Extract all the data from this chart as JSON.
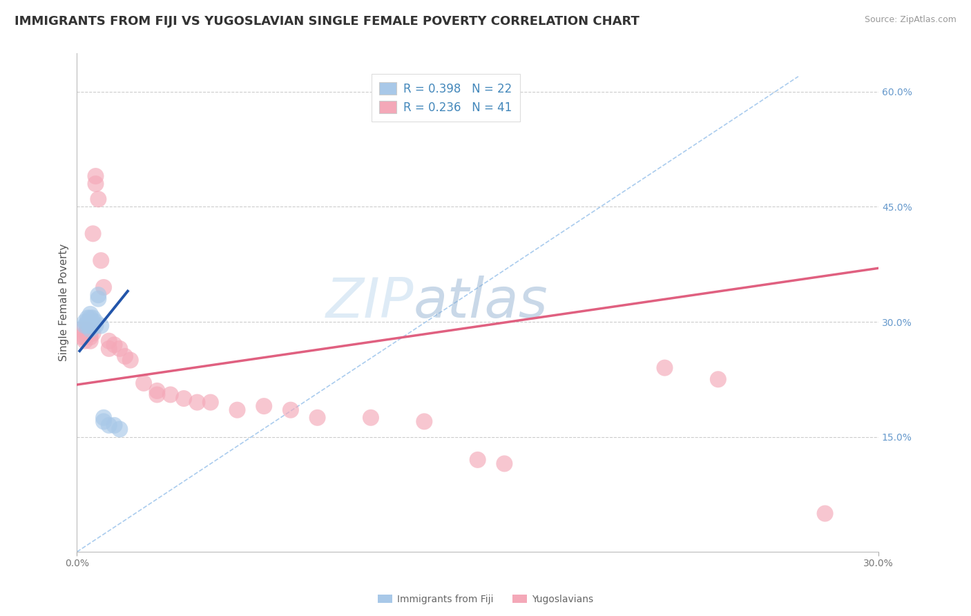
{
  "title": "IMMIGRANTS FROM FIJI VS YUGOSLAVIAN SINGLE FEMALE POVERTY CORRELATION CHART",
  "source": "Source: ZipAtlas.com",
  "ylabel": "Single Female Poverty",
  "xlim": [
    0.0,
    0.3
  ],
  "ylim": [
    0.0,
    0.65
  ],
  "watermark_text": "ZIP",
  "watermark_text2": "atlas",
  "fiji_color": "#A8C8E8",
  "yugo_color": "#F4A8B8",
  "fiji_line_color": "#2255AA",
  "yugo_line_color": "#E06080",
  "diag_line_color": "#AACCEE",
  "grid_color": "#CCCCCC",
  "background_color": "#FFFFFF",
  "title_color": "#333333",
  "source_color": "#999999",
  "tick_color": "#777777",
  "right_tick_color": "#6699CC",
  "legend_label_color": "#4488BB",
  "bottom_legend_color": "#666666",
  "fiji_scatter": [
    [
      0.003,
      0.3
    ],
    [
      0.003,
      0.295
    ],
    [
      0.004,
      0.305
    ],
    [
      0.004,
      0.3
    ],
    [
      0.004,
      0.295
    ],
    [
      0.005,
      0.31
    ],
    [
      0.005,
      0.305
    ],
    [
      0.005,
      0.295
    ],
    [
      0.005,
      0.29
    ],
    [
      0.006,
      0.305
    ],
    [
      0.006,
      0.3
    ],
    [
      0.006,
      0.295
    ],
    [
      0.007,
      0.3
    ],
    [
      0.007,
      0.295
    ],
    [
      0.008,
      0.335
    ],
    [
      0.008,
      0.33
    ],
    [
      0.009,
      0.295
    ],
    [
      0.01,
      0.175
    ],
    [
      0.01,
      0.17
    ],
    [
      0.012,
      0.165
    ],
    [
      0.014,
      0.165
    ],
    [
      0.016,
      0.16
    ]
  ],
  "yugo_scatter": [
    [
      0.002,
      0.29
    ],
    [
      0.002,
      0.28
    ],
    [
      0.003,
      0.285
    ],
    [
      0.003,
      0.28
    ],
    [
      0.003,
      0.275
    ],
    [
      0.004,
      0.29
    ],
    [
      0.004,
      0.285
    ],
    [
      0.005,
      0.285
    ],
    [
      0.005,
      0.28
    ],
    [
      0.005,
      0.275
    ],
    [
      0.006,
      0.285
    ],
    [
      0.006,
      0.415
    ],
    [
      0.007,
      0.49
    ],
    [
      0.007,
      0.48
    ],
    [
      0.008,
      0.46
    ],
    [
      0.009,
      0.38
    ],
    [
      0.01,
      0.345
    ],
    [
      0.012,
      0.275
    ],
    [
      0.012,
      0.265
    ],
    [
      0.014,
      0.27
    ],
    [
      0.016,
      0.265
    ],
    [
      0.018,
      0.255
    ],
    [
      0.02,
      0.25
    ],
    [
      0.025,
      0.22
    ],
    [
      0.03,
      0.21
    ],
    [
      0.03,
      0.205
    ],
    [
      0.035,
      0.205
    ],
    [
      0.04,
      0.2
    ],
    [
      0.045,
      0.195
    ],
    [
      0.05,
      0.195
    ],
    [
      0.06,
      0.185
    ],
    [
      0.07,
      0.19
    ],
    [
      0.08,
      0.185
    ],
    [
      0.09,
      0.175
    ],
    [
      0.11,
      0.175
    ],
    [
      0.13,
      0.17
    ],
    [
      0.15,
      0.12
    ],
    [
      0.16,
      0.115
    ],
    [
      0.22,
      0.24
    ],
    [
      0.24,
      0.225
    ],
    [
      0.28,
      0.05
    ]
  ],
  "fiji_line_x": [
    0.001,
    0.019
  ],
  "fiji_line_y": [
    0.262,
    0.34
  ],
  "yugo_line_x": [
    0.0,
    0.3
  ],
  "yugo_line_y": [
    0.218,
    0.37
  ],
  "diag_line_x": [
    0.0,
    0.27
  ],
  "diag_line_y": [
    0.0,
    0.62
  ],
  "title_fontsize": 13,
  "tick_fontsize": 10,
  "legend_fontsize": 12,
  "ylabel_fontsize": 11
}
